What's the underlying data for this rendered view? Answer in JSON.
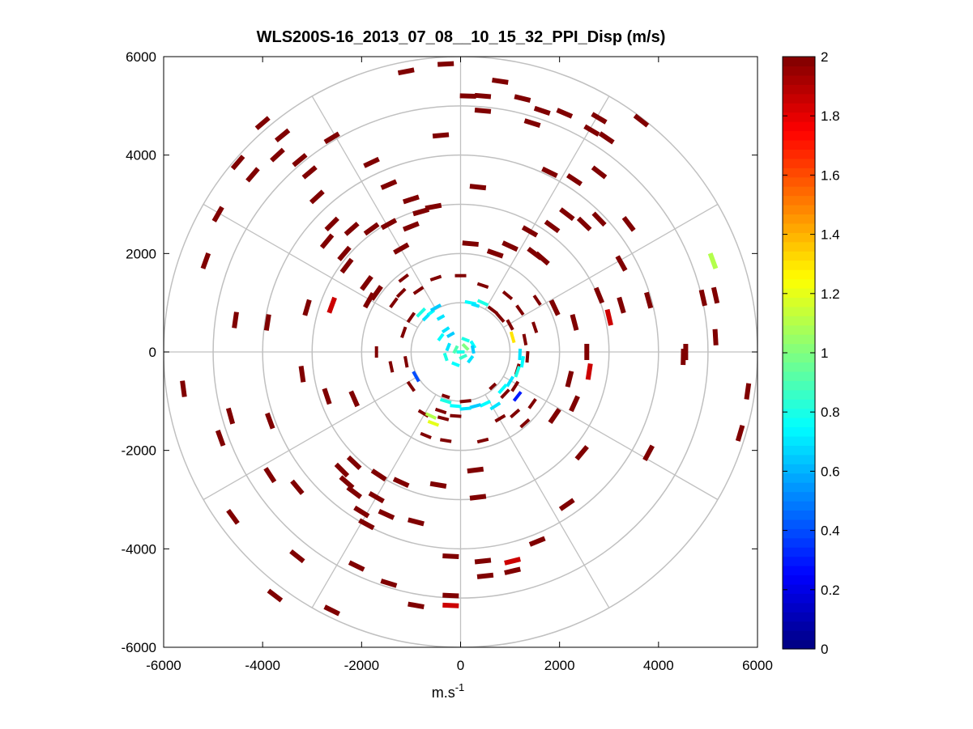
{
  "chart_data": {
    "type": "scatter",
    "subtype": "polar-ppi-sector-map",
    "title": "WLS200S-16_2013_07_08__10_15_32_PPI_Disp (m/s)",
    "xlabel_base": "m.s",
    "xlabel_exp": "-1",
    "ylabel": "",
    "xlim": [
      -6000,
      6000
    ],
    "ylim": [
      -6000,
      6000
    ],
    "xticks": [
      "-6000",
      "-4000",
      "-2000",
      "0",
      "2000",
      "4000",
      "6000"
    ],
    "yticks": [
      "6000",
      "4000",
      "2000",
      "0",
      "-2000",
      "-4000",
      "-6000"
    ],
    "xtick_values": [
      -6000,
      -4000,
      -2000,
      0,
      2000,
      4000,
      6000
    ],
    "ytick_values": [
      6000,
      4000,
      2000,
      0,
      -2000,
      -4000,
      -6000
    ],
    "range_rings_m": [
      1000,
      2000,
      3000,
      4000,
      5000,
      6000
    ],
    "spoke_angles_deg": [
      0,
      30,
      60,
      90,
      120,
      150,
      180,
      210,
      240,
      270,
      300,
      330
    ],
    "colorbar": {
      "min": 0,
      "max": 2,
      "ticks": [
        "2",
        "1.8",
        "1.6",
        "1.4",
        "1.2",
        "1",
        "0.8",
        "0.6",
        "0.4",
        "0.2",
        "0"
      ],
      "tick_values": [
        2,
        1.8,
        1.6,
        1.4,
        1.2,
        1,
        0.8,
        0.6,
        0.4,
        0.2,
        0
      ],
      "colormap": "jet"
    },
    "colors": {
      "grid": "#c0c0c0",
      "saturated": "#800000",
      "axis": "#000000"
    },
    "gates_note": "approximate sample of displayed range gates: x, y in metres, v = dispersion value in m/s",
    "gates": [
      {
        "x": -1100,
        "y": 5700,
        "v": 2
      },
      {
        "x": -300,
        "y": 5850,
        "v": 2
      },
      {
        "x": 800,
        "y": 5500,
        "v": 2
      },
      {
        "x": 150,
        "y": 5200,
        "v": 2
      },
      {
        "x": 450,
        "y": 5200,
        "v": 2
      },
      {
        "x": 1250,
        "y": 5150,
        "v": 2
      },
      {
        "x": 1650,
        "y": 4900,
        "v": 2
      },
      {
        "x": 2100,
        "y": 4850,
        "v": 2
      },
      {
        "x": 2800,
        "y": 4750,
        "v": 2
      },
      {
        "x": 3650,
        "y": 4700,
        "v": 2
      },
      {
        "x": 2650,
        "y": 4500,
        "v": 2
      },
      {
        "x": 450,
        "y": 4900,
        "v": 2
      },
      {
        "x": 1450,
        "y": 4650,
        "v": 2
      },
      {
        "x": 2950,
        "y": 4350,
        "v": 2
      },
      {
        "x": 1800,
        "y": 3650,
        "v": 2
      },
      {
        "x": -400,
        "y": 4400,
        "v": 2
      },
      {
        "x": -1800,
        "y": 3850,
        "v": 2
      },
      {
        "x": -2600,
        "y": 4350,
        "v": 2
      },
      {
        "x": -3600,
        "y": 4400,
        "v": 2
      },
      {
        "x": -4000,
        "y": 4650,
        "v": 2
      },
      {
        "x": -3700,
        "y": 4000,
        "v": 2
      },
      {
        "x": -4500,
        "y": 3850,
        "v": 2
      },
      {
        "x": -3250,
        "y": 3900,
        "v": 2
      },
      {
        "x": -3050,
        "y": 3650,
        "v": 2
      },
      {
        "x": -4200,
        "y": 3600,
        "v": 2
      },
      {
        "x": -2900,
        "y": 3150,
        "v": 2
      },
      {
        "x": -2600,
        "y": 2600,
        "v": 2
      },
      {
        "x": -1450,
        "y": 3400,
        "v": 2
      },
      {
        "x": -1000,
        "y": 3100,
        "v": 2
      },
      {
        "x": -800,
        "y": 2850,
        "v": 2
      },
      {
        "x": -550,
        "y": 2950,
        "v": 2
      },
      {
        "x": 350,
        "y": 3350,
        "v": 2
      },
      {
        "x": 2300,
        "y": 3500,
        "v": 2
      },
      {
        "x": 2800,
        "y": 3650,
        "v": 2
      },
      {
        "x": 2150,
        "y": 2800,
        "v": 2
      },
      {
        "x": 1850,
        "y": 2550,
        "v": 2
      },
      {
        "x": 2500,
        "y": 2600,
        "v": 2
      },
      {
        "x": 2800,
        "y": 2700,
        "v": 2
      },
      {
        "x": 3400,
        "y": 2600,
        "v": 2
      },
      {
        "x": 1400,
        "y": 2450,
        "v": 2
      },
      {
        "x": 1500,
        "y": 2000,
        "v": 2
      },
      {
        "x": 1000,
        "y": 2150,
        "v": 2
      },
      {
        "x": 1650,
        "y": 1900,
        "v": 2
      },
      {
        "x": 700,
        "y": 2000,
        "v": 2
      },
      {
        "x": 200,
        "y": 2200,
        "v": 2
      },
      {
        "x": -2200,
        "y": 2500,
        "v": 2
      },
      {
        "x": -2700,
        "y": 2250,
        "v": 2
      },
      {
        "x": -1450,
        "y": 2600,
        "v": 2
      },
      {
        "x": -1800,
        "y": 2500,
        "v": 2
      },
      {
        "x": -1000,
        "y": 2550,
        "v": 2
      },
      {
        "x": -1200,
        "y": 2100,
        "v": 2
      },
      {
        "x": -2350,
        "y": 2000,
        "v": 2
      },
      {
        "x": -4900,
        "y": 2800,
        "v": 2
      },
      {
        "x": -5150,
        "y": 1850,
        "v": 2
      },
      {
        "x": -2300,
        "y": 1750,
        "v": 2
      },
      {
        "x": -1900,
        "y": 1400,
        "v": 2
      },
      {
        "x": -1850,
        "y": 1050,
        "v": 2
      },
      {
        "x": -1700,
        "y": 1200,
        "v": 2
      },
      {
        "x": -1150,
        "y": 1500,
        "v": 2
      },
      {
        "x": -1350,
        "y": 1000,
        "v": 2
      },
      {
        "x": -1200,
        "y": 1200,
        "v": 2
      },
      {
        "x": -2600,
        "y": 950,
        "v": 1.85
      },
      {
        "x": -3100,
        "y": 900,
        "v": 2
      },
      {
        "x": -3900,
        "y": 600,
        "v": 2
      },
      {
        "x": -4550,
        "y": 650,
        "v": 2
      },
      {
        "x": -5600,
        "y": -750,
        "v": 2
      },
      {
        "x": -3200,
        "y": -450,
        "v": 2
      },
      {
        "x": -2700,
        "y": -900,
        "v": 2
      },
      {
        "x": -2150,
        "y": -950,
        "v": 2
      },
      {
        "x": -4650,
        "y": -1300,
        "v": 2
      },
      {
        "x": -4850,
        "y": -1750,
        "v": 2
      },
      {
        "x": -3850,
        "y": -1400,
        "v": 2
      },
      {
        "x": -3850,
        "y": -2500,
        "v": 2
      },
      {
        "x": -3300,
        "y": -2750,
        "v": 2
      },
      {
        "x": -2400,
        "y": -2400,
        "v": 2
      },
      {
        "x": -2150,
        "y": -2250,
        "v": 2
      },
      {
        "x": -2300,
        "y": -2650,
        "v": 2
      },
      {
        "x": -2150,
        "y": -2850,
        "v": 2
      },
      {
        "x": -1650,
        "y": -2500,
        "v": 2
      },
      {
        "x": -1700,
        "y": -2950,
        "v": 2
      },
      {
        "x": -1200,
        "y": -2650,
        "v": 2
      },
      {
        "x": -2000,
        "y": -3250,
        "v": 2
      },
      {
        "x": -1900,
        "y": -3500,
        "v": 2
      },
      {
        "x": -1500,
        "y": -3300,
        "v": 2
      },
      {
        "x": -900,
        "y": -3450,
        "v": 2
      },
      {
        "x": -4600,
        "y": -3350,
        "v": 2
      },
      {
        "x": -3300,
        "y": -4150,
        "v": 2
      },
      {
        "x": -2100,
        "y": -4350,
        "v": 2
      },
      {
        "x": -1450,
        "y": -4700,
        "v": 2
      },
      {
        "x": -3750,
        "y": -4950,
        "v": 2
      },
      {
        "x": -2600,
        "y": -5250,
        "v": 2
      },
      {
        "x": -900,
        "y": -5150,
        "v": 2
      },
      {
        "x": -200,
        "y": -4150,
        "v": 2
      },
      {
        "x": -200,
        "y": -4950,
        "v": 2
      },
      {
        "x": -200,
        "y": -5150,
        "v": 1.85
      },
      {
        "x": -450,
        "y": -2700,
        "v": 2
      },
      {
        "x": 300,
        "y": -2400,
        "v": 2
      },
      {
        "x": 350,
        "y": -2950,
        "v": 2
      },
      {
        "x": 450,
        "y": -4250,
        "v": 2
      },
      {
        "x": 500,
        "y": -4550,
        "v": 2
      },
      {
        "x": 1050,
        "y": -4250,
        "v": 1.85
      },
      {
        "x": 1550,
        "y": -3850,
        "v": 2
      },
      {
        "x": 1050,
        "y": -4450,
        "v": 2
      },
      {
        "x": 2150,
        "y": -3100,
        "v": 2
      },
      {
        "x": 2450,
        "y": -2050,
        "v": 2
      },
      {
        "x": 3800,
        "y": -2050,
        "v": 2
      },
      {
        "x": 2300,
        "y": -1050,
        "v": 2
      },
      {
        "x": 1900,
        "y": -1300,
        "v": 2
      },
      {
        "x": 2200,
        "y": -550,
        "v": 2
      },
      {
        "x": 2600,
        "y": -400,
        "v": 1.85
      },
      {
        "x": 2550,
        "y": 0,
        "v": 2
      },
      {
        "x": 2300,
        "y": 600,
        "v": 2
      },
      {
        "x": 3000,
        "y": 700,
        "v": 1.85
      },
      {
        "x": 3250,
        "y": 950,
        "v": 2
      },
      {
        "x": 2800,
        "y": 1150,
        "v": 2
      },
      {
        "x": 3800,
        "y": 1050,
        "v": 2
      },
      {
        "x": 3250,
        "y": 1800,
        "v": 2
      },
      {
        "x": 4550,
        "y": 0,
        "v": 2
      },
      {
        "x": 4900,
        "y": 1100,
        "v": 2
      },
      {
        "x": 5150,
        "y": 1150,
        "v": 2
      },
      {
        "x": 5150,
        "y": 300,
        "v": 2
      },
      {
        "x": 5100,
        "y": 1850,
        "v": 1.1
      },
      {
        "x": 5800,
        "y": -800,
        "v": 2
      },
      {
        "x": 5650,
        "y": -1650,
        "v": 2
      },
      {
        "x": 4500,
        "y": -100,
        "v": 2
      },
      {
        "x": 1900,
        "y": 900,
        "v": 2
      },
      {
        "x": 1550,
        "y": 1050,
        "v": 2
      },
      {
        "x": 1450,
        "y": -1050,
        "v": 2
      },
      {
        "x": 1100,
        "y": -1250,
        "v": 2
      },
      {
        "x": 800,
        "y": -1350,
        "v": 2
      },
      {
        "x": 1300,
        "y": -1450,
        "v": 2
      },
      {
        "x": 450,
        "y": -1800,
        "v": 2
      },
      {
        "x": -300,
        "y": -1800,
        "v": 2
      },
      {
        "x": -700,
        "y": -1700,
        "v": 2
      },
      {
        "x": -750,
        "y": -1250,
        "v": 2
      },
      {
        "x": -1000,
        "y": -700,
        "v": 2
      },
      {
        "x": -1400,
        "y": -300,
        "v": 2
      },
      {
        "x": -1700,
        "y": 0,
        "v": 2
      },
      {
        "x": -1150,
        "y": 400,
        "v": 2
      },
      {
        "x": -1000,
        "y": 700,
        "v": 2
      },
      {
        "x": -850,
        "y": 1250,
        "v": 2
      },
      {
        "x": -500,
        "y": 1500,
        "v": 2
      },
      {
        "x": 0,
        "y": 1550,
        "v": 2
      },
      {
        "x": 450,
        "y": 1350,
        "v": 2
      },
      {
        "x": 950,
        "y": 1150,
        "v": 2
      },
      {
        "x": 1200,
        "y": 850,
        "v": 2
      },
      {
        "x": 1500,
        "y": 500,
        "v": 2
      },
      {
        "x": 1300,
        "y": 250,
        "v": 2
      },
      {
        "x": 1150,
        "y": -350,
        "v": 2
      },
      {
        "x": 650,
        "y": -700,
        "v": 2
      },
      {
        "x": 100,
        "y": -1000,
        "v": 2
      },
      {
        "x": -300,
        "y": -900,
        "v": 2
      },
      {
        "x": -1100,
        "y": -200,
        "v": 2
      },
      {
        "x": -600,
        "y": 800,
        "v": 0.75
      },
      {
        "x": -700,
        "y": 700,
        "v": 0.7
      },
      {
        "x": -800,
        "y": 800,
        "v": 0.8
      },
      {
        "x": -500,
        "y": 900,
        "v": 0.65
      },
      {
        "x": -400,
        "y": 700,
        "v": 0.7
      },
      {
        "x": 200,
        "y": 1000,
        "v": 0.75
      },
      {
        "x": 300,
        "y": 950,
        "v": 0.7
      },
      {
        "x": 450,
        "y": 1000,
        "v": 0.8
      },
      {
        "x": 650,
        "y": 850,
        "v": 2
      },
      {
        "x": 800,
        "y": 700,
        "v": 2
      },
      {
        "x": 1000,
        "y": 550,
        "v": 2
      },
      {
        "x": 1050,
        "y": 300,
        "v": 1.3
      },
      {
        "x": -400,
        "y": 300,
        "v": 0.75
      },
      {
        "x": -300,
        "y": 450,
        "v": 0.7
      },
      {
        "x": -200,
        "y": 350,
        "v": 0.65
      },
      {
        "x": 100,
        "y": 250,
        "v": 0.8
      },
      {
        "x": 250,
        "y": 150,
        "v": 0.75
      },
      {
        "x": 200,
        "y": -150,
        "v": 0.7
      },
      {
        "x": -100,
        "y": -250,
        "v": 0.75
      },
      {
        "x": -300,
        "y": -100,
        "v": 0.8
      },
      {
        "x": -250,
        "y": 100,
        "v": 0.7
      },
      {
        "x": 250,
        "y": 50,
        "v": 0.65
      },
      {
        "x": 0,
        "y": 0,
        "v": 0.8
      },
      {
        "x": 100,
        "y": 100,
        "v": 1.0
      },
      {
        "x": -100,
        "y": 50,
        "v": 0.9
      },
      {
        "x": 50,
        "y": -100,
        "v": 0.85
      },
      {
        "x": 1200,
        "y": -50,
        "v": 0.7
      },
      {
        "x": 1250,
        "y": -200,
        "v": 0.75
      },
      {
        "x": 1150,
        "y": -400,
        "v": 0.8
      },
      {
        "x": 1000,
        "y": -600,
        "v": 0.7
      },
      {
        "x": 850,
        "y": -750,
        "v": 0.75
      },
      {
        "x": 1350,
        "y": -100,
        "v": 2
      },
      {
        "x": 1100,
        "y": -700,
        "v": 2
      },
      {
        "x": 700,
        "y": -1100,
        "v": 0.7
      },
      {
        "x": 500,
        "y": -1050,
        "v": 0.75
      },
      {
        "x": 300,
        "y": -1100,
        "v": 0.65
      },
      {
        "x": 100,
        "y": -1150,
        "v": 0.7
      },
      {
        "x": -100,
        "y": -1100,
        "v": 0.75
      },
      {
        "x": -300,
        "y": -1000,
        "v": 0.8
      },
      {
        "x": -400,
        "y": -1200,
        "v": 2
      },
      {
        "x": -350,
        "y": -1350,
        "v": 2
      },
      {
        "x": -600,
        "y": -1300,
        "v": 1.1
      },
      {
        "x": -550,
        "y": -1450,
        "v": 1.2
      },
      {
        "x": -100,
        "y": -1300,
        "v": 2
      },
      {
        "x": 900,
        "y": -850,
        "v": 2
      },
      {
        "x": 1150,
        "y": -900,
        "v": 0.3
      },
      {
        "x": -900,
        "y": -500,
        "v": 0.4
      }
    ]
  }
}
